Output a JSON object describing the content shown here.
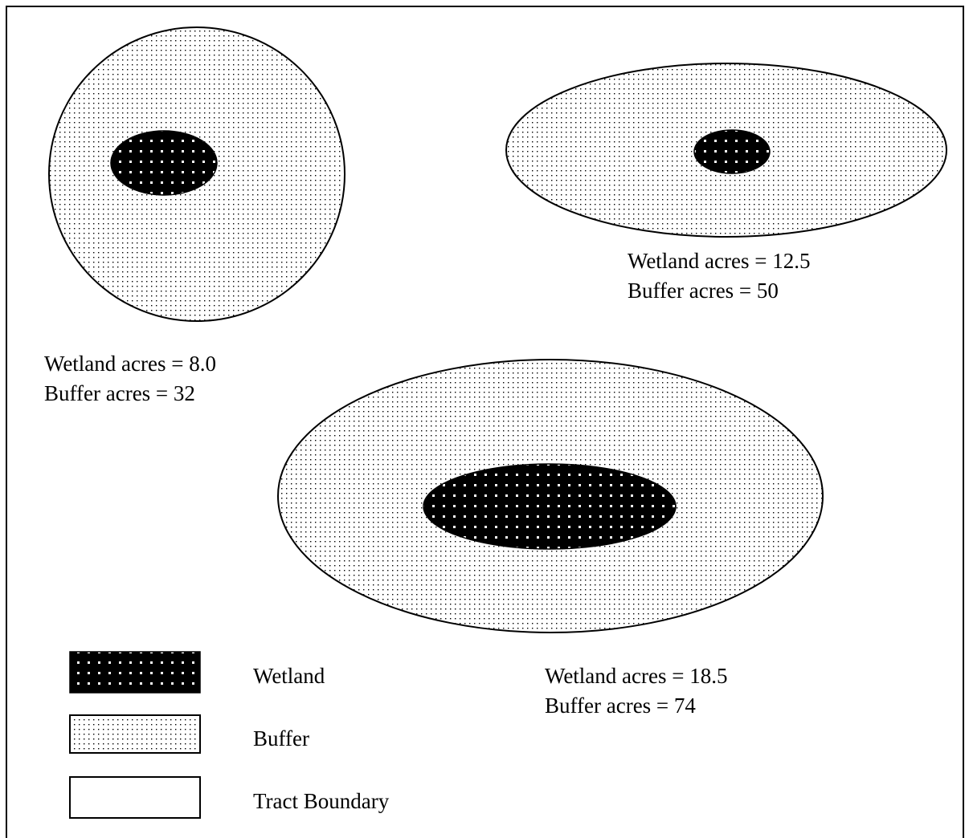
{
  "colors": {
    "wetland_fill": "#000000",
    "wetland_dot": "#ffffff",
    "buffer_fill": "#ffffff",
    "buffer_dot": "#000000",
    "tract_fill": "#ffffff",
    "outline": "#000000"
  },
  "tracts": [
    {
      "id": "tract-1",
      "wetland_label": "Wetland acres = 8.0",
      "buffer_label": "Buffer acres = 32"
    },
    {
      "id": "tract-2",
      "wetland_label": "Wetland acres = 12.5",
      "buffer_label": "Buffer acres = 50"
    },
    {
      "id": "tract-3",
      "wetland_label": "Wetland acres = 18.5",
      "buffer_label": "Buffer acres = 74"
    }
  ],
  "legend": {
    "wetland": "Wetland",
    "buffer": "Buffer",
    "tract_boundary": "Tract Boundary"
  }
}
